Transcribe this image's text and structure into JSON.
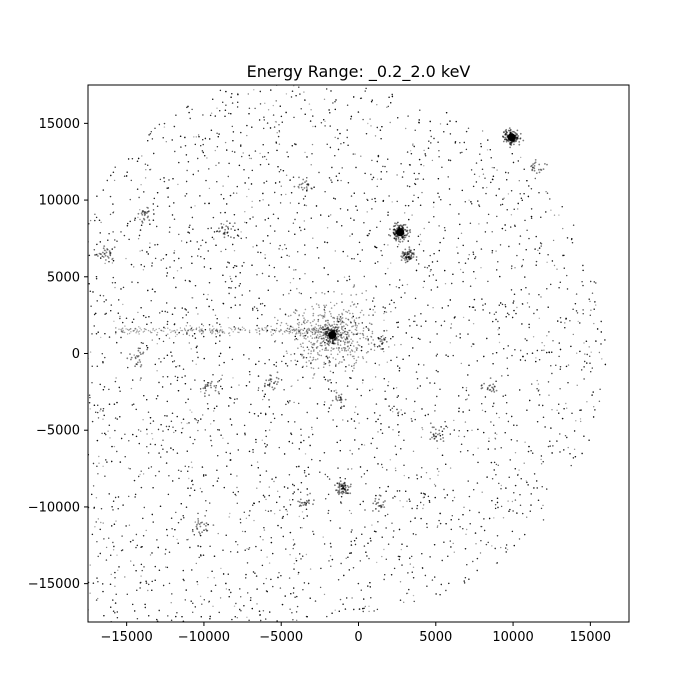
{
  "chart_data": {
    "type": "scatter",
    "title": "Energy Range: _0.2_2.0 keV",
    "xlabel": "",
    "ylabel": "",
    "xlim": [
      -17500,
      17500
    ],
    "ylim": [
      -17500,
      17500
    ],
    "x_ticks": [
      -15000,
      -10000,
      -5000,
      0,
      5000,
      10000,
      15000
    ],
    "y_ticks": [
      -15000,
      -10000,
      -5000,
      0,
      5000,
      10000,
      15000
    ],
    "grid": false,
    "legend": "none",
    "marker_color": "#000000",
    "background_field": {
      "description": "diffuse photon events",
      "x_range": [
        -17500,
        15800
      ],
      "y_range": [
        -17500,
        17500
      ]
    },
    "sources": [
      {
        "x": -1700,
        "y": 1200,
        "strength": "bright"
      },
      {
        "x": 2700,
        "y": 7900,
        "strength": "bright"
      },
      {
        "x": 3200,
        "y": 6400,
        "strength": "medium"
      },
      {
        "x": 9900,
        "y": 14100,
        "strength": "bright"
      },
      {
        "x": 11500,
        "y": 12100,
        "strength": "faint"
      },
      {
        "x": -1000,
        "y": -8800,
        "strength": "medium"
      },
      {
        "x": 1300,
        "y": 800,
        "strength": "faint"
      },
      {
        "x": -14200,
        "y": -300,
        "strength": "faint"
      },
      {
        "x": -9600,
        "y": -2300,
        "strength": "faint"
      },
      {
        "x": -5600,
        "y": -1800,
        "strength": "faint"
      },
      {
        "x": -3500,
        "y": 11000,
        "strength": "faint"
      },
      {
        "x": -8600,
        "y": 8100,
        "strength": "faint"
      },
      {
        "x": -16400,
        "y": 6500,
        "strength": "faint"
      },
      {
        "x": 1200,
        "y": -9900,
        "strength": "faint"
      },
      {
        "x": -1200,
        "y": -3000,
        "strength": "faint"
      },
      {
        "x": 8500,
        "y": -2200,
        "strength": "faint"
      },
      {
        "x": -10200,
        "y": -11200,
        "strength": "faint"
      },
      {
        "x": -3400,
        "y": -9700,
        "strength": "faint"
      },
      {
        "x": -13800,
        "y": 9000,
        "strength": "faint"
      },
      {
        "x": 5000,
        "y": -5200,
        "strength": "faint"
      }
    ]
  }
}
